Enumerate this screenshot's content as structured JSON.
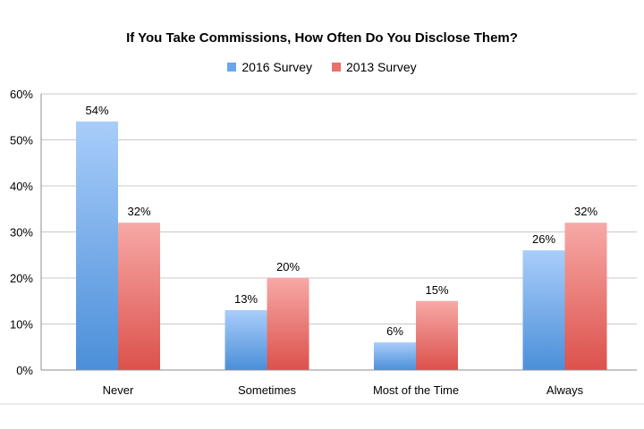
{
  "chart_data": {
    "type": "bar",
    "title": "If You Take Commissions, How Often Do You Disclose Them?",
    "categories": [
      "Never",
      "Sometimes",
      "Most of the Time",
      "Always"
    ],
    "series": [
      {
        "name": "2016 Survey",
        "values": [
          54,
          13,
          6,
          26
        ],
        "labels": [
          "54%",
          "13%",
          "6%",
          "26%"
        ],
        "color_top": "#a9cdfa",
        "color_bottom": "#4b8fd9"
      },
      {
        "name": "2013 Survey",
        "values": [
          32,
          20,
          15,
          32
        ],
        "labels": [
          "32%",
          "20%",
          "15%",
          "32%"
        ],
        "color_top": "#f7a9a6",
        "color_bottom": "#dc514c"
      }
    ],
    "ylim": [
      0,
      60
    ],
    "yticks": [
      0,
      10,
      20,
      30,
      40,
      50,
      60
    ],
    "ytick_labels": [
      "0%",
      "10%",
      "20%",
      "30%",
      "40%",
      "50%",
      "60%"
    ],
    "xlabel": "",
    "ylabel": "",
    "grid": true,
    "legend_position": "top-center"
  },
  "colors": {
    "grid": "#c8c8c8",
    "axis": "#8c8c8c"
  }
}
